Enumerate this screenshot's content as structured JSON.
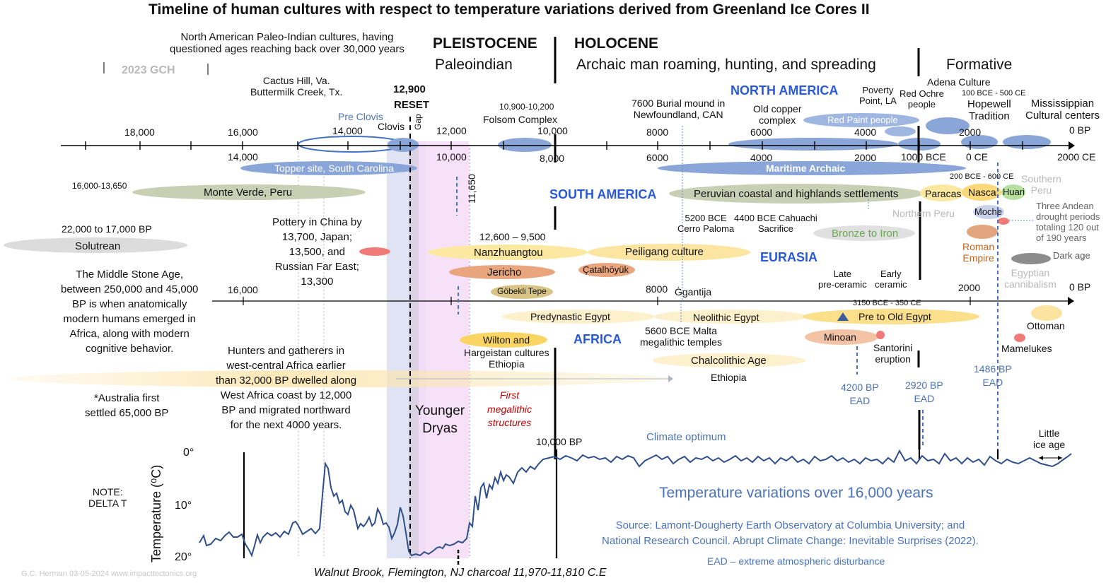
{
  "title": "Timeline of human cultures with respect to temperature variations derived from Greenland Ice Cores II",
  "era_labels": {
    "pleistocene": "PLEISTOCENE",
    "paleoindian": "Paleoindian",
    "holocene": "HOLOCENE",
    "archaic": "Archaic man roaming, hunting, and spreading",
    "formative": "Formative",
    "gch": "2023 GCH"
  },
  "regions": {
    "north_america": "NORTH AMERICA",
    "south_america": "SOUTH AMERICA",
    "eurasia": "EURASIA",
    "africa": "AFRICA"
  },
  "axis_top_upper": [
    "18,000",
    "16,000",
    "14,000",
    "12,000",
    "10,000",
    "8000",
    "6000",
    "4000",
    "2000",
    "0 BP"
  ],
  "axis_top_lower": [
    "14,000",
    "10,000",
    "8,000",
    "6000",
    "4000",
    "2000",
    "1000 BCE",
    "0 CE",
    "2000 CE"
  ],
  "axis_mid": [
    "16,000",
    "8000",
    "2000",
    "0 BP"
  ],
  "reset": {
    "year": "12,900",
    "label": "RESET",
    "gap": "Gap"
  },
  "younger_dryas": "Younger\nDryas",
  "y_11650": "11,650",
  "north_american_notes": {
    "paleo_indian": "North American Paleo-Indian cultures, having\nquestioned ages reaching back  over 30,000 years",
    "cactus_hill": "Cactus Hill, Va.\nButtermilk Creek, Tx.",
    "pre_clovis": "Pre Clovis",
    "clovis": "Clovis",
    "folsom_dates": "10,900-10,200",
    "folsom": "Folsom Complex",
    "burial": "7600 Burial mound in\nNewfoundland, CAN",
    "old_copper": "Old copper\ncomplex",
    "red_paint": "Red Paint people",
    "poverty_point": "Poverty\nPoint, LA",
    "red_ochre": "Red Ochre\npeople",
    "adena": "Adena Culture",
    "hopewell_dates": "100 BCE  - 500  CE",
    "hopewell": "Hopewell\nTradition",
    "mississippian": "Mississippian\nCultural centers",
    "topper": "Topper site, South Carolina",
    "maritime": "Maritime   Archaic"
  },
  "south_american_notes": {
    "monte_verde_dates": "16,000-13,650",
    "monte_verde": "Monte Verde, Peru",
    "peruvian": "Peruvian coastal and highlands settlements",
    "cerro_paloma": "5200 BCE\nCerro Paloma",
    "cahuachi": "4400 BCE Cahuachi\nSacrifice",
    "nasca_dates": "200 BCE - 600  CE",
    "paracas": "Paracas",
    "nasca": "Nasca",
    "huari": "Huari",
    "southern_peru": "Southern\nPeru",
    "northern_peru": "Northern Peru",
    "moche": "Moche",
    "drought": "Three Andean\ndrought periods\ntotaling 120 out\nof 190 years",
    "dark_age": "Dark age"
  },
  "eurasian_notes": {
    "solutrean_dates": "22,000 to 17,000 BP",
    "solutrean": "Solutrean",
    "pottery": "Pottery in China by\n13,700, Japan;\n13,500, and\nRussian Far East;\n13,300",
    "nanz_dates": "12,600 – 9,500",
    "nanzhuangtou": "Nanzhuangtou",
    "peiligang": "Peiligang culture",
    "jericho": "Jericho",
    "catalhoyuk": "Çatalhöyük",
    "gobekli": "Göbekli Tepe",
    "bronze": "Bronze to Iron",
    "roman": "Roman\nEmpire",
    "ggantija": "Ġgantija"
  },
  "african_notes": {
    "middle_stone_age": "The Middle Stone Age,\nbetween 250,000 and 45,000\nBP is when anatomically\nmodern humans emerged in\nAfrica, along with modern\ncognitive behavior.",
    "hunters": "Hunters and gatherers in\nwest-central Africa earlier\nthan 32,000 BP dwelled along\nWest Africa coast by 12,000\nBP and migrated northward\nfor the next 4000 years.",
    "australia": "*Australia first\nsettled 65,000 BP",
    "predynastic": "Predynastic Egypt",
    "neolithic": "Neolithic Egypt",
    "malta": "5600 BCE Malta\nmegalithic temples",
    "chalcolithic": "Chalcolithic Age",
    "ethiopia": "Ethiopia",
    "wilton": "Wilton and",
    "hargeistan": "Hargeistan cultures\nEthiopia",
    "late_preceramic": "Late\npre-ceramic",
    "early_ceramic": "Early\nceramic",
    "egypt_dates": "3150 BCE - 350 CE",
    "pre_old_egypt": "Pre to Old Egypt",
    "minoan": "Minoan",
    "santorini": "Santorini\neruption",
    "ottoman": "Ottoman",
    "mamelukes": "Mamelukes",
    "egyptian_cannibalism": "Egyptian\ncannibalism",
    "first_megalithic": "First\nmegalithic\nstructures"
  },
  "eads": {
    "ead_4200": "4200 BP\nEAD",
    "ead_2920": "2920 BP\nEAD",
    "ead_1486": "1486 BP\nEAD"
  },
  "temperature_panel": {
    "ylabel": "Temperature (⁰C)",
    "yticks": [
      "0°",
      "10°",
      "20°"
    ],
    "note": "NOTE:\nDELTA T",
    "marker_10000": "10,000 BP",
    "climate_optimum": "Climate optimum",
    "little_ice_age": "Little\nice age",
    "headline": "Temperature variations over 16,000 years",
    "source": "Source: Lamont-Dougherty Earth Observatory at Columbia University; and\nNational Research Council. Abrupt Climate Change: Inevitable Surprises (2022).",
    "ead_def": "EAD – extreme atmospheric disturbance",
    "walnut_brook": "Walnut Brook, Flemington, NJ charcoal 11,970-11,810 C.E"
  },
  "credit": "G.C. Herman 03-05-2024 www.impacttectonics.org",
  "colors": {
    "na_blue": "#8aa6d8",
    "sa_sage": "#c9cfb4",
    "yellow": "#fce8a0",
    "orange": "#e9a57e",
    "grey": "#cfcfcf",
    "red": "#f07a78",
    "curve": "#2f4f8a",
    "dryas": "#f6dcf8",
    "reset_band": "#dfe3f3"
  }
}
